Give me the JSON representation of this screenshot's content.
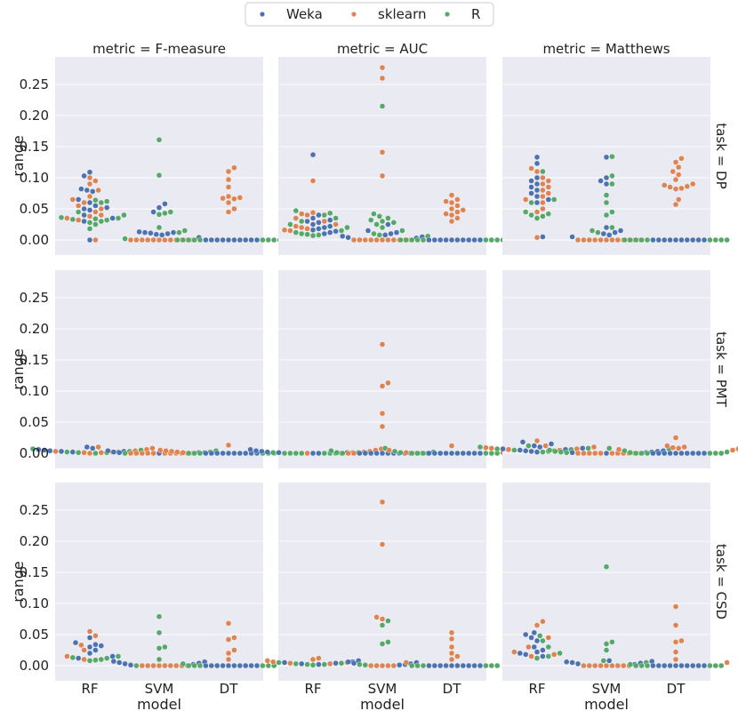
{
  "chart_data": {
    "type": "scatter",
    "style": "swarm",
    "ylim": [
      -0.025,
      0.29
    ],
    "yticks": [
      "0.00",
      "0.05",
      "0.10",
      "0.15",
      "0.20",
      "0.25"
    ],
    "ytick_values": [
      0,
      0.05,
      0.1,
      0.15,
      0.2,
      0.25
    ],
    "xlabel": "model",
    "ylabel": "range",
    "models": [
      "RF",
      "SVM",
      "DT"
    ],
    "col_titles": [
      "metric = F-measure",
      "metric = AUC",
      "metric = Matthews"
    ],
    "row_titles": [
      "task = DP",
      "task = PMT",
      "task = CSD"
    ],
    "legend": {
      "position": "top-center",
      "items": [
        {
          "name": "Weka",
          "color": "#4c72b0"
        },
        {
          "name": "sklearn",
          "color": "#dd8452"
        },
        {
          "name": "R",
          "color": "#55a868"
        }
      ]
    },
    "colors": {
      "background": "#eaeaf2",
      "grid": "#ffffff"
    },
    "series_order": [
      "Weka",
      "sklearn",
      "R"
    ],
    "panels": [
      [
        {
          "RF": {
            "Weka": [
              0.109,
              0.103,
              0.082,
              0.08,
              0.078,
              0.065,
              0.06,
              0.055,
              0.052,
              0.05,
              0.048,
              0.04,
              0.035,
              0.03,
              0.0
            ],
            "sklearn": [
              0.1,
              0.095,
              0.09,
              0.08,
              0.07,
              0.065,
              0.06,
              0.055,
              0.05,
              0.045,
              0.04,
              0.038,
              0.035,
              0.032,
              0.0
            ],
            "R": [
              0.064,
              0.062,
              0.06,
              0.045,
              0.04,
              0.036,
              0.035,
              0.034,
              0.033,
              0.032,
              0.03,
              0.028,
              0.025,
              0.018
            ]
          },
          "SVM": {
            "Weka": [
              0.058,
              0.052,
              0.045,
              0.013,
              0.012,
              0.012,
              0.011,
              0.01,
              0.009,
              0.008,
              0.004
            ],
            "sklearn": [
              0.0,
              0.0,
              0.0,
              0.0,
              0.0,
              0.0,
              0.0,
              0.0,
              0.0,
              0.0,
              0.0,
              0.0
            ],
            "R": [
              0.161,
              0.104,
              0.045,
              0.043,
              0.041,
              0.02,
              0.015,
              0.012,
              0.002
            ]
          },
          "DT": {
            "Weka": [
              0.0,
              0.0,
              0.0,
              0.0,
              0.0,
              0.0,
              0.0,
              0.0,
              0.0,
              0.0
            ],
            "sklearn": [
              0.116,
              0.11,
              0.097,
              0.085,
              0.07,
              0.068,
              0.067,
              0.066,
              0.06,
              0.05,
              0.045
            ],
            "R": [
              0.0,
              0.0,
              0.0,
              0.0,
              0.0,
              0.0,
              0.0,
              0.0,
              0.0
            ]
          }
        },
        {
          "RF": {
            "Weka": [
              0.137,
              0.04,
              0.035,
              0.032,
              0.03,
              0.028,
              0.025,
              0.022,
              0.02,
              0.018,
              0.016,
              0.014,
              0.012,
              0.01
            ],
            "sklearn": [
              0.095,
              0.044,
              0.042,
              0.04,
              0.035,
              0.03,
              0.025,
              0.022,
              0.02,
              0.018,
              0.016,
              0.015
            ],
            "R": [
              0.047,
              0.043,
              0.04,
              0.035,
              0.03,
              0.025,
              0.02,
              0.015,
              0.012,
              0.01,
              0.009,
              0.008,
              0.007
            ]
          },
          "SVM": {
            "Weka": [
              0.025,
              0.015,
              0.012,
              0.01,
              0.008,
              0.006,
              0.005,
              0.004,
              0.003
            ],
            "sklearn": [
              0.277,
              0.26,
              0.141,
              0.103,
              0.0,
              0.0,
              0.0,
              0.0,
              0.0,
              0.0,
              0.0,
              0.0,
              0.0,
              0.0,
              0.0
            ],
            "R": [
              0.215,
              0.042,
              0.038,
              0.035,
              0.032,
              0.03,
              0.028,
              0.025,
              0.02,
              0.015,
              0.01,
              0.008,
              0.006
            ]
          },
          "DT": {
            "Weka": [
              0.0,
              0.0,
              0.0,
              0.0,
              0.0,
              0.0,
              0.0,
              0.0,
              0.0,
              0.0
            ],
            "sklearn": [
              0.072,
              0.065,
              0.062,
              0.06,
              0.055,
              0.05,
              0.048,
              0.045,
              0.042,
              0.04,
              0.035,
              0.03
            ],
            "R": [
              0.0,
              0.0,
              0.0,
              0.0,
              0.0,
              0.0,
              0.0,
              0.0,
              0.0
            ]
          }
        },
        {
          "RF": {
            "Weka": [
              0.133,
              0.123,
              0.1,
              0.095,
              0.09,
              0.085,
              0.08,
              0.075,
              0.07,
              0.065,
              0.06,
              0.005
            ],
            "sklearn": [
              0.115,
              0.11,
              0.1,
              0.095,
              0.09,
              0.085,
              0.08,
              0.075,
              0.07,
              0.065,
              0.06,
              0.05,
              0.045,
              0.004
            ],
            "R": [
              0.11,
              0.065,
              0.06,
              0.045,
              0.042,
              0.04,
              0.038,
              0.035
            ]
          },
          "SVM": {
            "Weka": [
              0.133,
              0.1,
              0.095,
              0.09,
              0.02,
              0.015,
              0.012,
              0.01,
              0.008,
              0.005
            ],
            "sklearn": [
              0.0,
              0.0,
              0.0,
              0.0,
              0.0,
              0.0,
              0.0,
              0.0,
              0.0,
              0.0,
              0.0,
              0.0
            ],
            "R": [
              0.134,
              0.103,
              0.09,
              0.072,
              0.06,
              0.045,
              0.04,
              0.02,
              0.015,
              0.012
            ]
          },
          "DT": {
            "Weka": [
              0.0,
              0.0,
              0.0,
              0.0,
              0.0,
              0.0,
              0.0,
              0.0,
              0.0,
              0.0
            ],
            "sklearn": [
              0.131,
              0.125,
              0.117,
              0.11,
              0.105,
              0.097,
              0.09,
              0.088,
              0.086,
              0.085,
              0.083,
              0.082,
              0.065,
              0.057
            ],
            "R": [
              0.0,
              0.0,
              0.0,
              0.0,
              0.0,
              0.0,
              0.0,
              0.0,
              0.0
            ]
          }
        }
      ],
      [
        {
          "RF": {
            "Weka": [
              0.01,
              0.008,
              0.006,
              0.005,
              0.004,
              0.003,
              0.003,
              0.002
            ],
            "sklearn": [
              0.01,
              0.008,
              0.006,
              0.004,
              0.003,
              0.002,
              0.001,
              0.001,
              0.0
            ],
            "R": [
              0.007,
              0.005,
              0.003,
              0.002,
              0.002,
              0.001,
              0.001,
              0.0
            ]
          },
          "SVM": {
            "Weka": [
              0.004,
              0.002,
              0.001,
              0.001,
              0.0
            ],
            "sklearn": [
              0.0,
              0.0,
              0.0,
              0.0,
              0.0,
              0.0,
              0.0,
              0.0,
              0.0,
              0.0,
              0.0
            ],
            "R": [
              0.004,
              0.002,
              0.001,
              0.0
            ]
          },
          "DT": {
            "Weka": [
              0.0,
              0.0,
              0.0,
              0.0,
              0.0,
              0.0,
              0.0,
              0.0,
              0.0,
              0.0
            ],
            "sklearn": [
              0.013,
              0.007,
              0.005,
              0.004,
              0.003,
              0.002,
              0.001,
              0.001
            ],
            "R": [
              0.004,
              0.003,
              0.002,
              0.0,
              0.0,
              0.0,
              0.0,
              0.0,
              0.0
            ]
          }
        },
        {
          "RF": {
            "Weka": [
              0.006,
              0.004,
              0.003,
              0.002,
              0.001,
              0.001,
              0.0,
              0.0
            ],
            "sklearn": [
              0.007,
              0.005,
              0.003,
              0.002,
              0.001,
              0.0
            ],
            "R": [
              0.001,
              0.001,
              0.0,
              0.0,
              0.0,
              0.0,
              0.0,
              0.0,
              0.0,
              0.0
            ]
          },
          "SVM": {
            "Weka": [
              0.0,
              0.0,
              0.0,
              0.0,
              0.0,
              0.0,
              0.0,
              0.0,
              0.0,
              0.0
            ],
            "sklearn": [
              0.175,
              0.113,
              0.108,
              0.064,
              0.043,
              0.0,
              0.0,
              0.0
            ],
            "R": [
              0.008,
              0.004,
              0.002,
              0.001,
              0.0,
              0.0,
              0.0
            ]
          },
          "DT": {
            "Weka": [
              0.0,
              0.0,
              0.0,
              0.0,
              0.0,
              0.0,
              0.0,
              0.0,
              0.0,
              0.0
            ],
            "sklearn": [
              0.012,
              0.005,
              0.004,
              0.002,
              0.001,
              0.001
            ],
            "R": [
              0.003,
              0.001,
              0.0,
              0.0,
              0.0,
              0.0,
              0.0,
              0.0
            ]
          }
        },
        {
          "RF": {
            "Weka": [
              0.018,
              0.015,
              0.012,
              0.01,
              0.008,
              0.007,
              0.006,
              0.005,
              0.004,
              0.003,
              0.002
            ],
            "sklearn": [
              0.02,
              0.012,
              0.01,
              0.009,
              0.008,
              0.007,
              0.006,
              0.005
            ],
            "R": [
              0.012,
              0.01,
              0.008,
              0.007,
              0.006,
              0.005,
              0.004,
              0.003,
              0.002
            ]
          },
          "SVM": {
            "Weka": [
              0.004,
              0.003,
              0.002,
              0.001,
              0.001,
              0.0
            ],
            "sklearn": [
              0.0,
              0.0,
              0.0,
              0.0,
              0.0,
              0.0,
              0.0,
              0.0,
              0.0,
              0.0,
              0.0
            ],
            "R": [
              0.008,
              0.007,
              0.005,
              0.003,
              0.002,
              0.001
            ]
          },
          "DT": {
            "Weka": [
              0.0,
              0.0,
              0.0,
              0.0,
              0.0,
              0.0,
              0.0,
              0.0,
              0.0,
              0.0
            ],
            "sklearn": [
              0.025,
              0.012,
              0.01,
              0.009,
              0.008,
              0.007,
              0.006,
              0.005
            ],
            "R": [
              0.004,
              0.002,
              0.001,
              0.0,
              0.0,
              0.0,
              0.0,
              0.0,
              0.0
            ]
          }
        }
      ],
      [
        {
          "RF": {
            "Weka": [
              0.045,
              0.037,
              0.034,
              0.032,
              0.03,
              0.025,
              0.02,
              0.015,
              0.012
            ],
            "sklearn": [
              0.055,
              0.048,
              0.033,
              0.025,
              0.015,
              0.01
            ],
            "R": [
              0.015,
              0.013,
              0.012,
              0.01,
              0.009,
              0.008
            ]
          },
          "SVM": {
            "Weka": [
              0.007,
              0.006,
              0.005,
              0.004,
              0.003,
              0.002,
              0.001
            ],
            "sklearn": [
              0.0,
              0.0,
              0.0,
              0.0,
              0.0,
              0.0,
              0.0,
              0.0
            ],
            "R": [
              0.079,
              0.053,
              0.03,
              0.028,
              0.01,
              0.0,
              0.0
            ]
          },
          "DT": {
            "Weka": [
              0.0,
              0.0,
              0.0,
              0.0,
              0.0,
              0.0,
              0.0,
              0.0,
              0.0,
              0.0
            ],
            "sklearn": [
              0.068,
              0.045,
              0.042,
              0.025,
              0.02,
              0.01
            ],
            "R": [
              0.005,
              0.003,
              0.0,
              0.0,
              0.0,
              0.0,
              0.0,
              0.0
            ]
          }
        },
        {
          "RF": {
            "Weka": [
              0.008,
              0.006,
              0.005,
              0.004,
              0.003,
              0.002
            ],
            "sklearn": [
              0.012,
              0.01,
              0.008,
              0.006,
              0.005,
              0.004,
              0.003
            ],
            "R": [
              0.005,
              0.004,
              0.003,
              0.002,
              0.002,
              0.001
            ]
          },
          "SVM": {
            "Weka": [
              0.006,
              0.005,
              0.004,
              0.003,
              0.002,
              0.001
            ],
            "sklearn": [
              0.263,
              0.195,
              0.078,
              0.075,
              0.0,
              0.0,
              0.0,
              0.0,
              0.0
            ],
            "R": [
              0.072,
              0.065,
              0.038,
              0.035,
              0.002,
              0.001
            ]
          },
          "DT": {
            "Weka": [
              0.0,
              0.0,
              0.0,
              0.0,
              0.0,
              0.0,
              0.0,
              0.0,
              0.0,
              0.0
            ],
            "sklearn": [
              0.053,
              0.043,
              0.03,
              0.02,
              0.015,
              0.01,
              0.005
            ],
            "R": [
              0.0,
              0.0,
              0.0,
              0.0,
              0.0,
              0.0
            ]
          }
        },
        {
          "RF": {
            "Weka": [
              0.053,
              0.05,
              0.045,
              0.04,
              0.03,
              0.025,
              0.022,
              0.02,
              0.018,
              0.015
            ],
            "sklearn": [
              0.071,
              0.065,
              0.045,
              0.03,
              0.022,
              0.018,
              0.015
            ],
            "R": [
              0.048,
              0.04,
              0.03,
              0.02,
              0.015,
              0.012
            ]
          },
          "SVM": {
            "Weka": [
              0.008,
              0.007,
              0.006,
              0.005,
              0.004,
              0.003,
              0.002
            ],
            "sklearn": [
              0.0,
              0.0,
              0.0,
              0.0,
              0.0,
              0.0,
              0.0,
              0.0,
              0.0
            ],
            "R": [
              0.159,
              0.038,
              0.035,
              0.025,
              0.008,
              0.005
            ]
          },
          "DT": {
            "Weka": [
              0.0,
              0.0,
              0.0,
              0.0,
              0.0,
              0.0,
              0.0,
              0.0,
              0.0,
              0.0
            ],
            "sklearn": [
              0.095,
              0.065,
              0.04,
              0.038,
              0.022,
              0.01,
              0.005
            ],
            "R": [
              0.002,
              0.0,
              0.0,
              0.0,
              0.0,
              0.0,
              0.0
            ]
          }
        }
      ]
    ]
  }
}
